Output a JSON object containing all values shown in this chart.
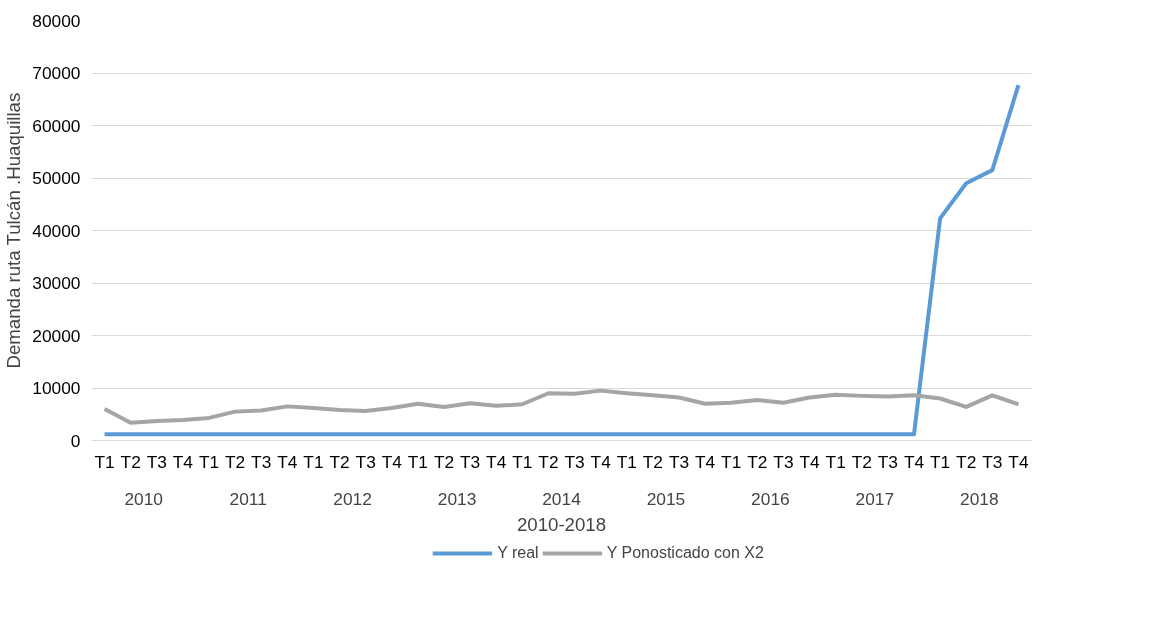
{
  "chart_data": {
    "type": "line",
    "xlabel": "2010-2018",
    "ylabel": "Demanda ruta Tulcán .Huaquillas",
    "categories": [
      "T1",
      "T2",
      "T3",
      "T4",
      "T1",
      "T2",
      "T3",
      "T4",
      "T1",
      "T2",
      "T3",
      "T4",
      "T1",
      "T2",
      "T3",
      "T4",
      "T1",
      "T2",
      "T3",
      "T4",
      "T1",
      "T2",
      "T3",
      "T4",
      "T1",
      "T2",
      "T3",
      "T4",
      "T1",
      "T2",
      "T3",
      "T4",
      "T1",
      "T2",
      "T3",
      "T4"
    ],
    "annotations": [
      "2010",
      "2011",
      "2012",
      "2013",
      "2014",
      "2015",
      "2016",
      "2017",
      "2018"
    ],
    "series": [
      {
        "name": "Y real",
        "color": "#5b9bd5",
        "values": [
          1200,
          1200,
          1200,
          1200,
          1200,
          1200,
          1200,
          1200,
          1200,
          1200,
          1200,
          1200,
          1200,
          1200,
          1200,
          1200,
          1200,
          1200,
          1200,
          1200,
          1200,
          1200,
          1200,
          1200,
          1200,
          1200,
          1200,
          1200,
          1200,
          1200,
          1200,
          1200,
          42300,
          49000,
          51500,
          67700
        ]
      },
      {
        "name": "Y Ponosticado con X2",
        "color": "#a5a5a5",
        "values": [
          6000,
          3400,
          3700,
          3900,
          4300,
          5500,
          5700,
          6500,
          6200,
          5800,
          5600,
          6200,
          7000,
          6400,
          7100,
          6600,
          6900,
          9000,
          8900,
          9500,
          9000,
          8600,
          8200,
          7000,
          7200,
          7700,
          7200,
          8200,
          8700,
          8500,
          8400,
          8600,
          8000,
          6400,
          8600,
          6900
        ]
      }
    ],
    "ylim": [
      0,
      80000
    ],
    "yticks": [
      0,
      10000,
      20000,
      30000,
      40000,
      50000,
      60000,
      70000,
      80000
    ],
    "grid": "y",
    "legend": "bottom",
    "marker": "none",
    "line_style": "solid"
  }
}
